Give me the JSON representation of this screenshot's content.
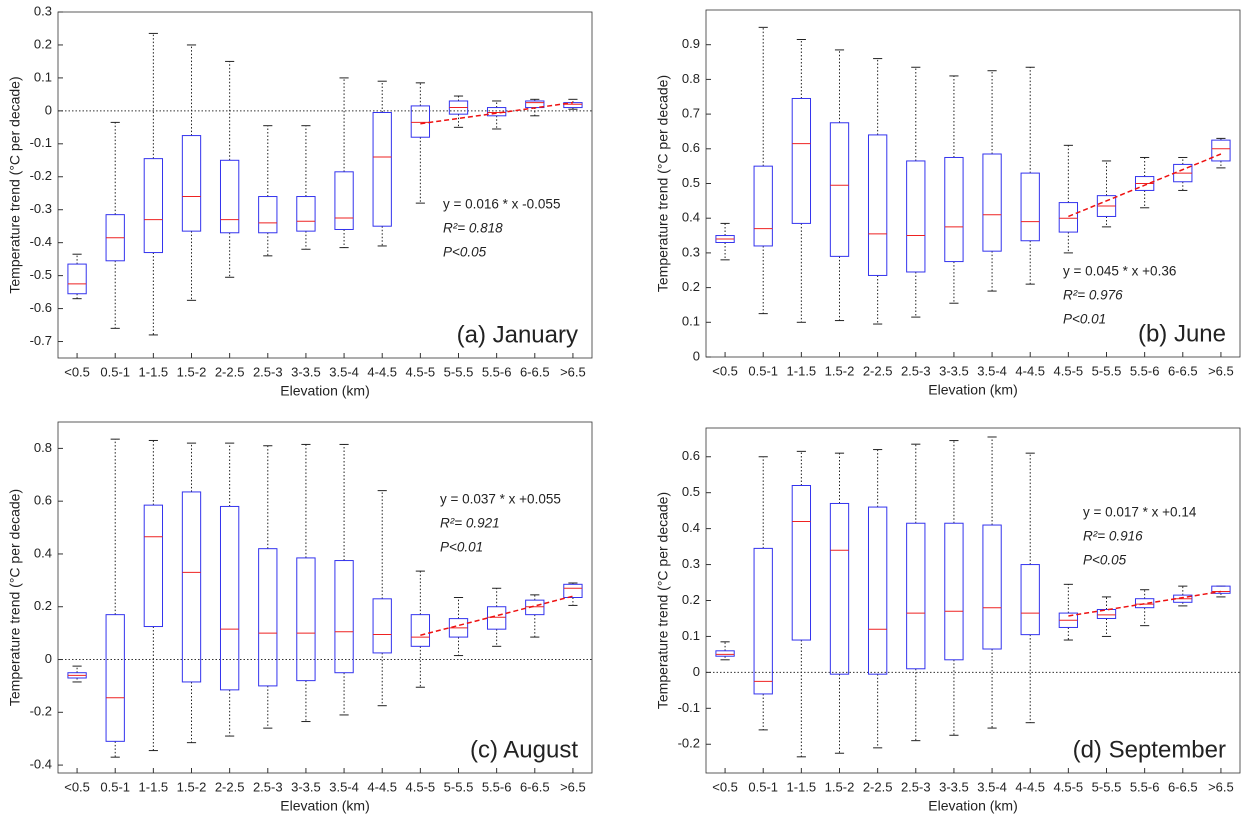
{
  "chart_data": [
    {
      "type": "box",
      "title": "(a) January",
      "xlabel": "Elevation (km)",
      "ylabel": "Temperature trend (°C per decade)",
      "categories": [
        "<0.5",
        "0.5-1",
        "1-1.5",
        "1.5-2",
        "2-2.5",
        "2.5-3",
        "3-3.5",
        "3.5-4",
        "4-4.5",
        "4.5-5",
        "5-5.5",
        "5.5-6",
        "6-6.5",
        ">6.5"
      ],
      "whislo": [
        -0.57,
        -0.66,
        -0.68,
        -0.575,
        -0.505,
        -0.44,
        -0.42,
        -0.415,
        -0.41,
        -0.28,
        -0.05,
        -0.055,
        -0.015,
        0.005
      ],
      "q1": [
        -0.555,
        -0.455,
        -0.43,
        -0.365,
        -0.37,
        -0.37,
        -0.365,
        -0.36,
        -0.35,
        -0.08,
        -0.01,
        -0.015,
        0.01,
        0.01
      ],
      "med": [
        -0.525,
        -0.385,
        -0.33,
        -0.26,
        -0.33,
        -0.34,
        -0.335,
        -0.325,
        -0.14,
        -0.035,
        0.01,
        -0.005,
        0.025,
        0.02
      ],
      "q3": [
        -0.465,
        -0.315,
        -0.145,
        -0.075,
        -0.15,
        -0.26,
        -0.26,
        -0.185,
        -0.005,
        0.015,
        0.03,
        0.01,
        0.03,
        0.025
      ],
      "whishi": [
        -0.435,
        -0.035,
        0.235,
        0.2,
        0.15,
        -0.045,
        -0.045,
        0.1,
        0.09,
        0.085,
        0.045,
        0.03,
        0.035,
        0.035
      ],
      "trend": [
        null,
        null,
        null,
        null,
        null,
        null,
        null,
        null,
        null,
        -0.039,
        -0.023,
        -0.007,
        0.009,
        0.025
      ],
      "equation": "y = 0.016 * x -0.055",
      "r2": "R²= 0.818",
      "p": "P<0.05",
      "ylim": [
        -0.75,
        0.3
      ],
      "yticks": [
        -0.7,
        -0.6,
        -0.5,
        -0.4,
        -0.3,
        -0.2,
        -0.1,
        0,
        0.1,
        0.2,
        0.3
      ],
      "zero_line": true,
      "box_color": "#3333ee",
      "median_color": "#ee2222",
      "trend_color": "#ee1111"
    },
    {
      "type": "box",
      "title": "(b) June",
      "xlabel": "Elevation (km)",
      "ylabel": "Temperature trend (°C per decade)",
      "categories": [
        "<0.5",
        "0.5-1",
        "1-1.5",
        "1.5-2",
        "2-2.5",
        "2.5-3",
        "3-3.5",
        "3.5-4",
        "4-4.5",
        "4.5-5",
        "5-5.5",
        "5.5-6",
        "6-6.5",
        ">6.5"
      ],
      "whislo": [
        0.28,
        0.125,
        0.1,
        0.105,
        0.095,
        0.115,
        0.155,
        0.19,
        0.21,
        0.3,
        0.375,
        0.43,
        0.48,
        0.545
      ],
      "q1": [
        0.33,
        0.32,
        0.385,
        0.29,
        0.235,
        0.245,
        0.275,
        0.305,
        0.335,
        0.36,
        0.405,
        0.48,
        0.505,
        0.565
      ],
      "med": [
        0.34,
        0.37,
        0.615,
        0.495,
        0.355,
        0.35,
        0.375,
        0.41,
        0.39,
        0.4,
        0.435,
        0.5,
        0.53,
        0.6
      ],
      "q3": [
        0.35,
        0.55,
        0.745,
        0.675,
        0.64,
        0.565,
        0.575,
        0.585,
        0.53,
        0.445,
        0.465,
        0.52,
        0.555,
        0.625
      ],
      "whishi": [
        0.385,
        0.95,
        0.915,
        0.885,
        0.86,
        0.835,
        0.81,
        0.825,
        0.835,
        0.61,
        0.565,
        0.575,
        0.575,
        0.63
      ],
      "trend": [
        null,
        null,
        null,
        null,
        null,
        null,
        null,
        null,
        null,
        0.405,
        0.45,
        0.495,
        0.54,
        0.585
      ],
      "equation": "y = 0.045 * x +0.36",
      "r2": "R²= 0.976",
      "p": "P<0.01",
      "ylim": [
        0,
        1.0
      ],
      "yticks": [
        0,
        0.1,
        0.2,
        0.3,
        0.4,
        0.5,
        0.6,
        0.7,
        0.8,
        0.9
      ],
      "zero_line": false,
      "box_color": "#3333ee",
      "median_color": "#ee2222",
      "trend_color": "#ee1111"
    },
    {
      "type": "box",
      "title": "(c) August",
      "xlabel": "Elevation (km)",
      "ylabel": "Temperature trend (°C per decade)",
      "categories": [
        "<0.5",
        "0.5-1",
        "1-1.5",
        "1.5-2",
        "2-2.5",
        "2.5-3",
        "3-3.5",
        "3.5-4",
        "4-4.5",
        "4.5-5",
        "5-5.5",
        "5.5-6",
        "6-6.5",
        ">6.5"
      ],
      "whislo": [
        -0.085,
        -0.37,
        -0.345,
        -0.315,
        -0.29,
        -0.26,
        -0.235,
        -0.21,
        -0.175,
        -0.105,
        0.015,
        0.05,
        0.085,
        0.205
      ],
      "q1": [
        -0.07,
        -0.31,
        0.125,
        -0.085,
        -0.115,
        -0.1,
        -0.08,
        -0.05,
        0.025,
        0.05,
        0.085,
        0.115,
        0.17,
        0.235
      ],
      "med": [
        -0.06,
        -0.145,
        0.465,
        0.33,
        0.115,
        0.1,
        0.1,
        0.105,
        0.095,
        0.085,
        0.12,
        0.16,
        0.2,
        0.27
      ],
      "q3": [
        -0.05,
        0.17,
        0.585,
        0.635,
        0.58,
        0.42,
        0.385,
        0.375,
        0.23,
        0.17,
        0.155,
        0.2,
        0.225,
        0.285
      ],
      "whishi": [
        -0.025,
        0.835,
        0.83,
        0.82,
        0.82,
        0.81,
        0.815,
        0.815,
        0.64,
        0.335,
        0.235,
        0.27,
        0.245,
        0.29
      ],
      "trend": [
        null,
        null,
        null,
        null,
        null,
        null,
        null,
        null,
        null,
        0.092,
        0.129,
        0.166,
        0.203,
        0.24
      ],
      "equation": "y = 0.037 * x +0.055",
      "r2": "R²= 0.921",
      "p": "P<0.01",
      "ylim": [
        -0.43,
        0.9
      ],
      "yticks": [
        -0.4,
        -0.2,
        0,
        0.2,
        0.4,
        0.6,
        0.8
      ],
      "zero_line": true,
      "box_color": "#3333ee",
      "median_color": "#ee2222",
      "trend_color": "#ee1111"
    },
    {
      "type": "box",
      "title": "(d) September",
      "xlabel": "Elevation (km)",
      "ylabel": "Temperature trend (°C per decade)",
      "categories": [
        "<0.5",
        "0.5-1",
        "1-1.5",
        "1.5-2",
        "2-2.5",
        "2.5-3",
        "3-3.5",
        "3.5-4",
        "4-4.5",
        "4.5-5",
        "5-5.5",
        "5.5-6",
        "6-6.5",
        ">6.5"
      ],
      "whislo": [
        0.035,
        -0.16,
        -0.235,
        -0.225,
        -0.21,
        -0.19,
        -0.175,
        -0.155,
        -0.14,
        0.09,
        0.1,
        0.13,
        0.185,
        0.21
      ],
      "q1": [
        0.045,
        -0.06,
        0.09,
        -0.005,
        -0.005,
        0.01,
        0.035,
        0.065,
        0.105,
        0.125,
        0.15,
        0.18,
        0.195,
        0.22
      ],
      "med": [
        0.05,
        -0.025,
        0.42,
        0.34,
        0.12,
        0.165,
        0.17,
        0.18,
        0.165,
        0.145,
        0.16,
        0.19,
        0.205,
        0.225
      ],
      "q3": [
        0.06,
        0.345,
        0.52,
        0.47,
        0.46,
        0.415,
        0.415,
        0.41,
        0.3,
        0.165,
        0.175,
        0.205,
        0.215,
        0.24
      ],
      "whishi": [
        0.085,
        0.6,
        0.615,
        0.61,
        0.62,
        0.635,
        0.645,
        0.655,
        0.61,
        0.245,
        0.21,
        0.23,
        0.24,
        0.24
      ],
      "trend": [
        null,
        null,
        null,
        null,
        null,
        null,
        null,
        null,
        null,
        0.157,
        0.174,
        0.191,
        0.208,
        0.225
      ],
      "equation": "y = 0.017 * x +0.14",
      "r2": "R²= 0.916",
      "p": "P<0.05",
      "ylim": [
        -0.28,
        0.68
      ],
      "yticks": [
        -0.2,
        -0.1,
        0,
        0.1,
        0.2,
        0.3,
        0.4,
        0.5,
        0.6
      ],
      "zero_line": true,
      "box_color": "#3333ee",
      "median_color": "#ee2222",
      "trend_color": "#ee1111"
    }
  ]
}
